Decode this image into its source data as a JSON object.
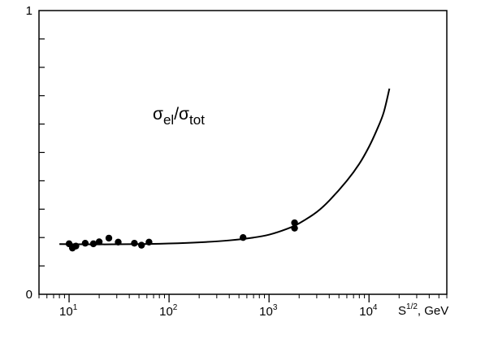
{
  "chart_data": {
    "type": "scatter",
    "title": "",
    "annotation": {
      "symbol": "σ",
      "sub1": "el",
      "slash": "/",
      "sub2": "tot"
    },
    "xlabel": {
      "base": "S",
      "sup": "1/2",
      "unit": ", GeV"
    },
    "ylabel": "",
    "x_scale": "log",
    "xlim": [
      5,
      60000
    ],
    "ylim": [
      0,
      1
    ],
    "grid": false,
    "x_ticks": [
      {
        "value": 10,
        "base": "10",
        "exp": "1"
      },
      {
        "value": 100,
        "base": "10",
        "exp": "2"
      },
      {
        "value": 1000,
        "base": "10",
        "exp": "3"
      },
      {
        "value": 10000,
        "base": "10",
        "exp": "4"
      }
    ],
    "y_tick_labels": [
      {
        "value": 0,
        "label": "0"
      },
      {
        "value": 1,
        "label": "1"
      }
    ],
    "y_minor_ticks": [
      0.1,
      0.2,
      0.3,
      0.4,
      0.5,
      0.6,
      0.7,
      0.8,
      0.9
    ],
    "series": [
      {
        "kind": "points",
        "color": "#000000",
        "points": [
          {
            "x": 10,
            "y": 0.178
          },
          {
            "x": 10.8,
            "y": 0.163
          },
          {
            "x": 11.7,
            "y": 0.17
          },
          {
            "x": 14.5,
            "y": 0.18
          },
          {
            "x": 17.5,
            "y": 0.178
          },
          {
            "x": 20,
            "y": 0.185
          },
          {
            "x": 25,
            "y": 0.198
          },
          {
            "x": 31,
            "y": 0.184
          },
          {
            "x": 45,
            "y": 0.18
          },
          {
            "x": 53,
            "y": 0.173
          },
          {
            "x": 63,
            "y": 0.184
          },
          {
            "x": 550,
            "y": 0.2
          },
          {
            "x": 1800,
            "y": 0.252
          },
          {
            "x": 1800,
            "y": 0.233
          }
        ]
      },
      {
        "kind": "curve",
        "color": "#000000",
        "points": [
          {
            "x": 8,
            "y": 0.177
          },
          {
            "x": 20,
            "y": 0.176
          },
          {
            "x": 50,
            "y": 0.177
          },
          {
            "x": 100,
            "y": 0.179
          },
          {
            "x": 200,
            "y": 0.183
          },
          {
            "x": 400,
            "y": 0.19
          },
          {
            "x": 700,
            "y": 0.2
          },
          {
            "x": 1000,
            "y": 0.21
          },
          {
            "x": 1500,
            "y": 0.23
          },
          {
            "x": 2000,
            "y": 0.25
          },
          {
            "x": 3000,
            "y": 0.29
          },
          {
            "x": 4000,
            "y": 0.33
          },
          {
            "x": 6000,
            "y": 0.4
          },
          {
            "x": 8000,
            "y": 0.46
          },
          {
            "x": 10000,
            "y": 0.52
          },
          {
            "x": 12000,
            "y": 0.58
          },
          {
            "x": 14000,
            "y": 0.64
          },
          {
            "x": 16000,
            "y": 0.725
          }
        ]
      }
    ]
  }
}
